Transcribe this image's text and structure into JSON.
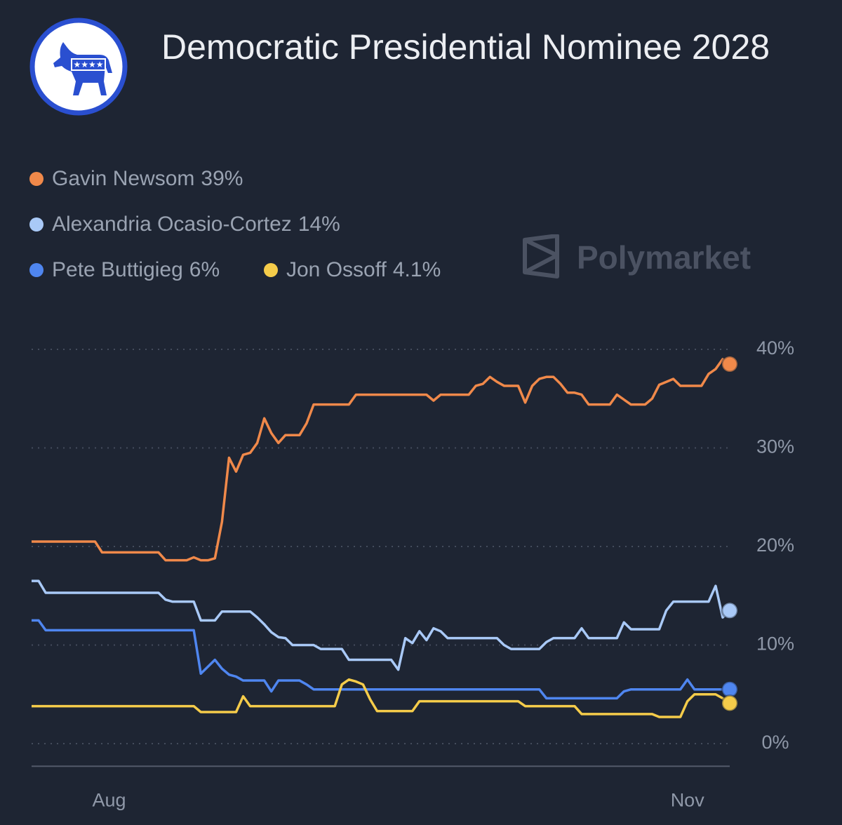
{
  "chart_data": {
    "type": "line",
    "title": "Democratic Presidential Nominee 2028",
    "watermark": "Polymarket",
    "categories": [
      null,
      null,
      null,
      null,
      null,
      null,
      null,
      null,
      null,
      null,
      null,
      "Aug",
      null,
      null,
      null,
      null,
      null,
      null,
      null,
      null,
      null,
      null,
      null,
      null,
      null,
      null,
      null,
      null,
      null,
      null,
      null,
      null,
      null,
      null,
      null,
      null,
      null,
      null,
      null,
      null,
      null,
      null,
      null,
      null,
      null,
      null,
      null,
      null,
      null,
      null,
      null,
      null,
      null,
      null,
      null,
      null,
      null,
      null,
      null,
      null,
      null,
      null,
      null,
      null,
      null,
      null,
      null,
      null,
      null,
      null,
      null,
      null,
      null,
      null,
      null,
      null,
      null,
      null,
      null,
      null,
      null,
      null,
      null,
      null,
      null,
      null,
      null,
      null,
      null,
      null,
      null,
      null,
      null,
      "Nov",
      null,
      null,
      null,
      null,
      null,
      null
    ],
    "ylim": [
      -2.3,
      41.3
    ],
    "yticks": [
      {
        "value": 0,
        "label": "0%"
      },
      {
        "value": 10,
        "label": "10%"
      },
      {
        "value": 20,
        "label": "20%"
      },
      {
        "value": 30,
        "label": "30%"
      },
      {
        "value": 40,
        "label": "40%"
      }
    ],
    "grid": true,
    "series": [
      {
        "name": "Gavin Newsom",
        "legend_label": "39%",
        "color": "#f0894a",
        "values": [
          20.5,
          20.5,
          20.5,
          20.5,
          20.5,
          20.5,
          20.5,
          20.5,
          20.5,
          20.5,
          19.4,
          19.4,
          19.4,
          19.4,
          19.4,
          19.4,
          19.4,
          19.4,
          19.4,
          18.6,
          18.6,
          18.6,
          18.6,
          18.9,
          18.6,
          18.6,
          18.8,
          22.5,
          29.0,
          27.6,
          29.3,
          29.5,
          30.5,
          33.0,
          31.5,
          30.5,
          31.3,
          31.3,
          31.3,
          32.5,
          34.4,
          34.4,
          34.4,
          34.4,
          34.4,
          34.4,
          35.4,
          35.4,
          35.4,
          35.4,
          35.4,
          35.4,
          35.4,
          35.4,
          35.4,
          35.4,
          35.4,
          34.8,
          35.4,
          35.4,
          35.4,
          35.4,
          35.4,
          36.3,
          36.5,
          37.2,
          36.7,
          36.3,
          36.3,
          36.3,
          34.6,
          36.3,
          37.0,
          37.2,
          37.2,
          36.5,
          35.6,
          35.6,
          35.4,
          34.4,
          34.4,
          34.4,
          34.4,
          35.4,
          34.9,
          34.4,
          34.4,
          34.4,
          35.0,
          36.4,
          36.7,
          37.0,
          36.3,
          36.3,
          36.3,
          36.3,
          37.5,
          38.0,
          39.0,
          38.5
        ]
      },
      {
        "name": "Alexandria Ocasio-Cortez",
        "legend_label": "14%",
        "color": "#a9c9f7",
        "values": [
          16.5,
          16.5,
          15.3,
          15.3,
          15.3,
          15.3,
          15.3,
          15.3,
          15.3,
          15.3,
          15.3,
          15.3,
          15.3,
          15.3,
          15.3,
          15.3,
          15.3,
          15.3,
          15.3,
          14.6,
          14.4,
          14.4,
          14.4,
          14.4,
          12.5,
          12.5,
          12.5,
          13.4,
          13.4,
          13.4,
          13.4,
          13.4,
          12.8,
          12.1,
          11.3,
          10.8,
          10.7,
          10.0,
          10.0,
          10.0,
          10.0,
          9.6,
          9.6,
          9.6,
          9.6,
          8.5,
          8.5,
          8.5,
          8.5,
          8.5,
          8.5,
          8.5,
          7.5,
          10.7,
          10.2,
          11.4,
          10.5,
          11.7,
          11.4,
          10.7,
          10.7,
          10.7,
          10.7,
          10.7,
          10.7,
          10.7,
          10.7,
          10.0,
          9.6,
          9.6,
          9.6,
          9.6,
          9.6,
          10.3,
          10.7,
          10.7,
          10.7,
          10.7,
          11.7,
          10.7,
          10.7,
          10.7,
          10.7,
          10.7,
          12.3,
          11.6,
          11.6,
          11.6,
          11.6,
          11.6,
          13.5,
          14.4,
          14.4,
          14.4,
          14.4,
          14.4,
          14.4,
          16.0,
          12.8,
          13.5
        ]
      },
      {
        "name": "Pete Buttigieg",
        "legend_label": "6%",
        "color": "#4f86f0",
        "values": [
          12.5,
          12.5,
          11.5,
          11.5,
          11.5,
          11.5,
          11.5,
          11.5,
          11.5,
          11.5,
          11.5,
          11.5,
          11.5,
          11.5,
          11.5,
          11.5,
          11.5,
          11.5,
          11.5,
          11.5,
          11.5,
          11.5,
          11.5,
          11.5,
          7.1,
          7.8,
          8.5,
          7.6,
          7.0,
          6.8,
          6.4,
          6.4,
          6.4,
          6.4,
          5.3,
          6.4,
          6.4,
          6.4,
          6.4,
          6.0,
          5.5,
          5.5,
          5.5,
          5.5,
          5.5,
          5.5,
          5.5,
          5.5,
          5.5,
          5.5,
          5.5,
          5.5,
          5.5,
          5.5,
          5.5,
          5.5,
          5.5,
          5.5,
          5.5,
          5.5,
          5.5,
          5.5,
          5.5,
          5.5,
          5.5,
          5.5,
          5.5,
          5.5,
          5.5,
          5.5,
          5.5,
          5.5,
          5.5,
          4.6,
          4.6,
          4.6,
          4.6,
          4.6,
          4.6,
          4.6,
          4.6,
          4.6,
          4.6,
          4.6,
          5.3,
          5.5,
          5.5,
          5.5,
          5.5,
          5.5,
          5.5,
          5.5,
          5.5,
          6.5,
          5.5,
          5.5,
          5.5,
          5.5,
          5.5,
          5.5
        ]
      },
      {
        "name": "Jon Ossoff",
        "legend_label": "4.1%",
        "color": "#f5cc4a",
        "values": [
          3.8,
          3.8,
          3.8,
          3.8,
          3.8,
          3.8,
          3.8,
          3.8,
          3.8,
          3.8,
          3.8,
          3.8,
          3.8,
          3.8,
          3.8,
          3.8,
          3.8,
          3.8,
          3.8,
          3.8,
          3.8,
          3.8,
          3.8,
          3.8,
          3.2,
          3.2,
          3.2,
          3.2,
          3.2,
          3.2,
          4.8,
          3.8,
          3.8,
          3.8,
          3.8,
          3.8,
          3.8,
          3.8,
          3.8,
          3.8,
          3.8,
          3.8,
          3.8,
          3.8,
          6.0,
          6.5,
          6.3,
          6.0,
          4.5,
          3.3,
          3.3,
          3.3,
          3.3,
          3.3,
          3.3,
          4.3,
          4.3,
          4.3,
          4.3,
          4.3,
          4.3,
          4.3,
          4.3,
          4.3,
          4.3,
          4.3,
          4.3,
          4.3,
          4.3,
          4.3,
          3.8,
          3.8,
          3.8,
          3.8,
          3.8,
          3.8,
          3.8,
          3.8,
          3.0,
          3.0,
          3.0,
          3.0,
          3.0,
          3.0,
          3.0,
          3.0,
          3.0,
          3.0,
          3.0,
          2.7,
          2.7,
          2.7,
          2.7,
          4.3,
          5.0,
          5.0,
          5.0,
          5.0,
          4.6,
          4.1
        ]
      }
    ]
  }
}
